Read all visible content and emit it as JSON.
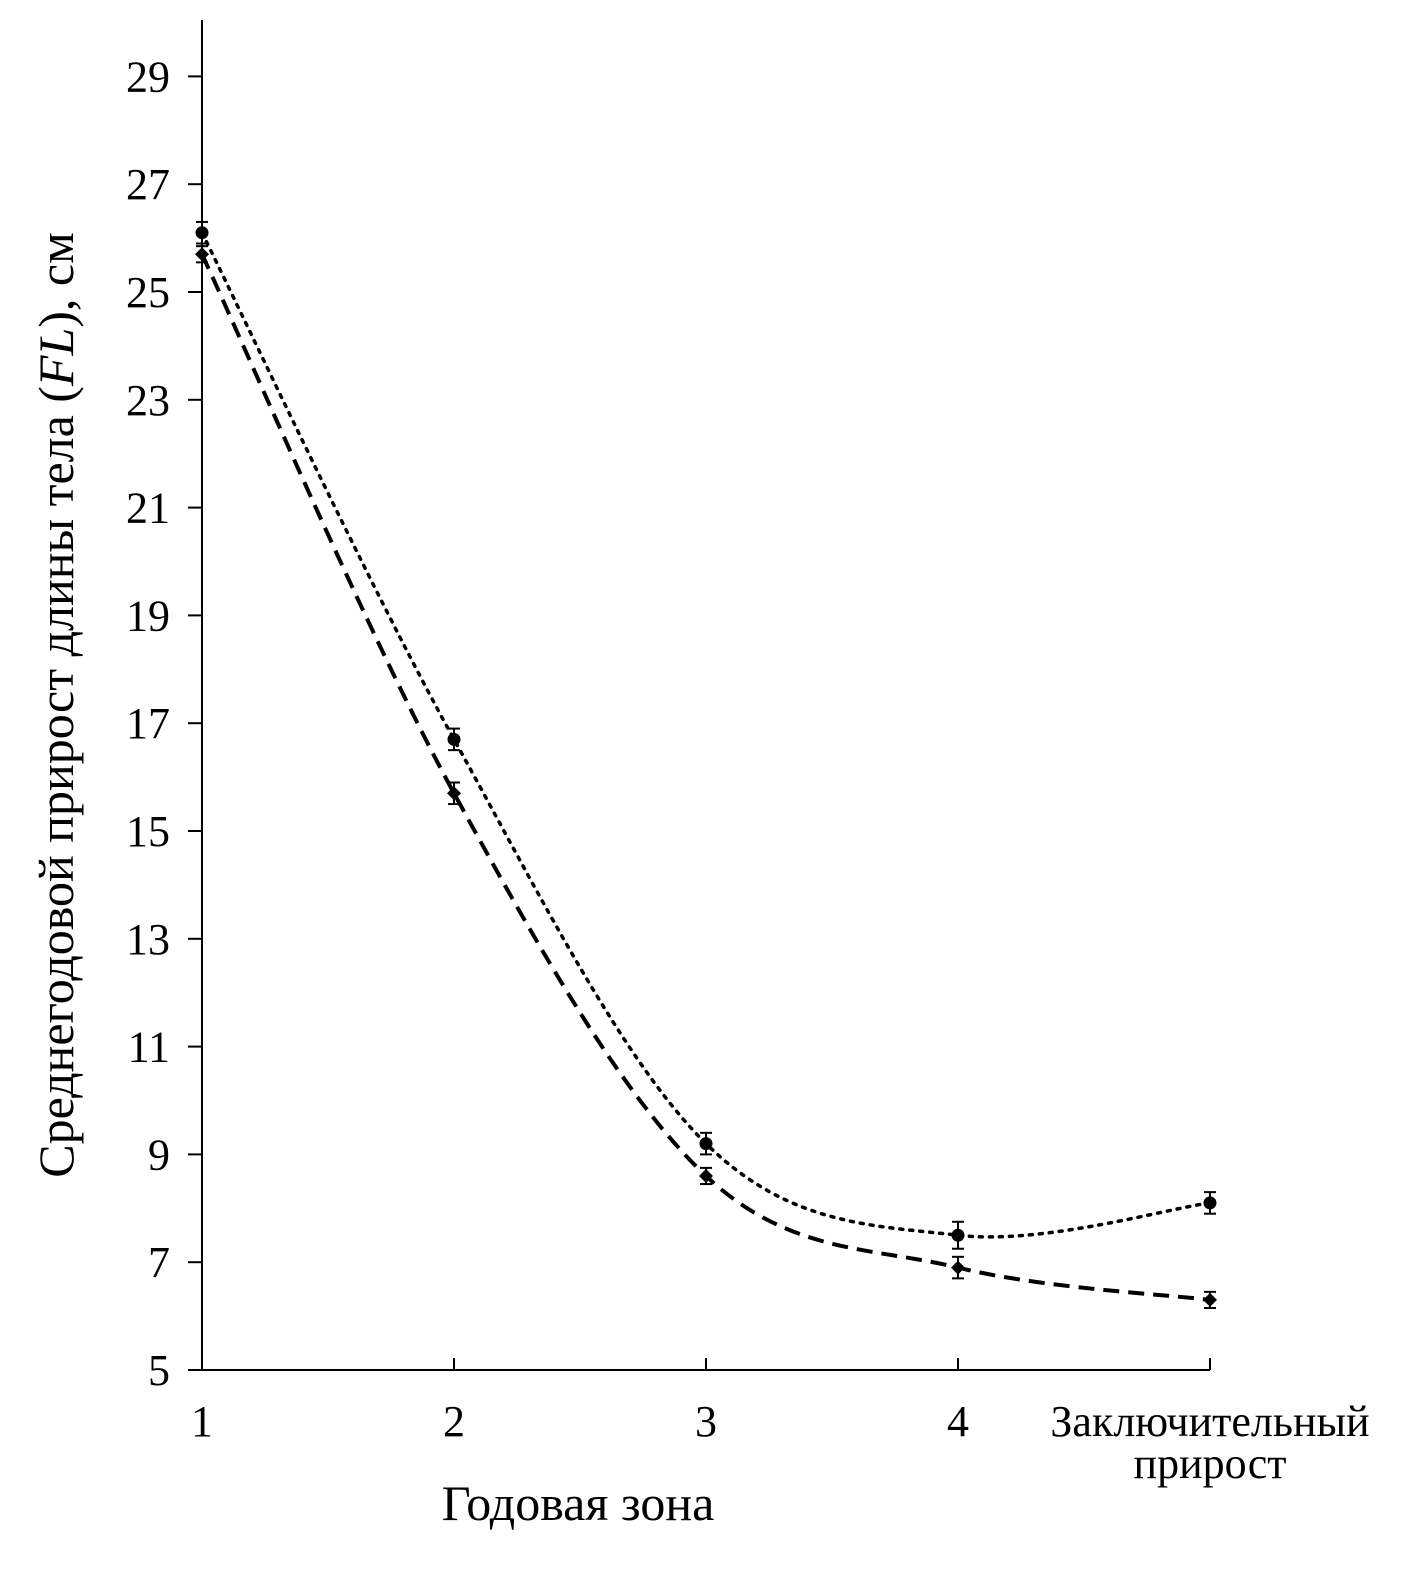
{
  "chart_data": {
    "type": "line",
    "title": "",
    "xlabel": "Годовая зона",
    "ylabel_parts": [
      "Среднегодовой прирост длины тела (",
      "FL",
      "), см"
    ],
    "categories": [
      "1",
      "2",
      "3",
      "4",
      "Заключительный прирост"
    ],
    "category_label_lines": [
      [
        "1"
      ],
      [
        "2"
      ],
      [
        "3"
      ],
      [
        "4"
      ],
      [
        "Заключительный",
        "прирост"
      ]
    ],
    "yticks": [
      5,
      7,
      9,
      11,
      13,
      15,
      17,
      19,
      21,
      23,
      25,
      27,
      29
    ],
    "ylim": [
      5,
      30
    ],
    "grid": false,
    "series": [
      {
        "name": "series-circles",
        "marker": "circle",
        "linestyle": "dotted",
        "values": [
          26.1,
          16.7,
          9.2,
          7.5,
          8.1
        ],
        "errors": [
          0.2,
          0.2,
          0.2,
          0.25,
          0.2
        ]
      },
      {
        "name": "series-diamonds",
        "marker": "diamond",
        "linestyle": "dashed",
        "values": [
          25.7,
          15.7,
          8.6,
          6.9,
          6.3
        ],
        "errors": [
          0.15,
          0.2,
          0.15,
          0.2,
          0.15
        ]
      }
    ]
  }
}
